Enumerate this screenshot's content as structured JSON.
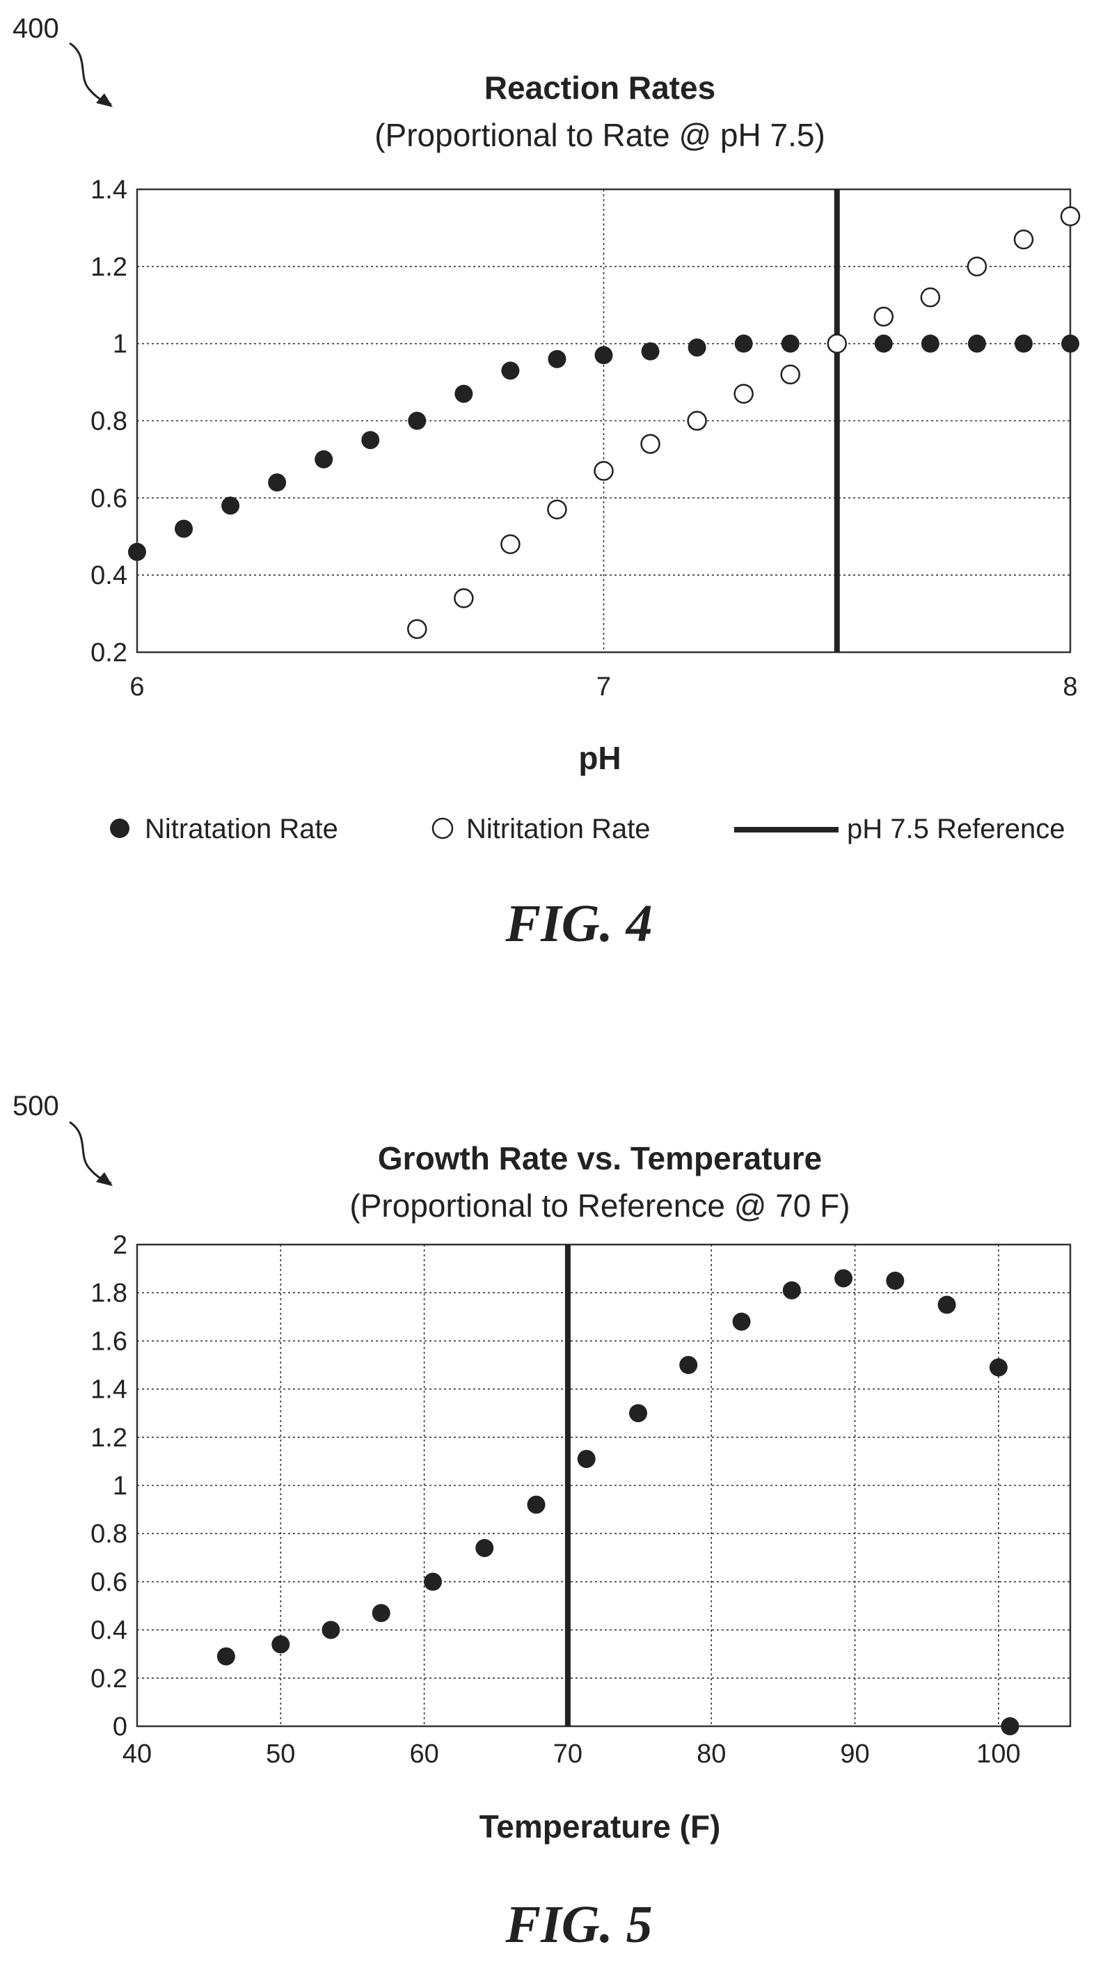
{
  "chart_data": [
    {
      "ref_number": "400",
      "figure_label": "FIG. 4",
      "type": "scatter",
      "title": "Reaction Rates",
      "subtitle": "(Proportional to Rate @ pH 7.5)",
      "xlabel": "pH",
      "ylabel": "",
      "xlim": [
        6,
        8
      ],
      "ylim": [
        0.2,
        1.4
      ],
      "x_ticks": [
        "6",
        "7",
        "8"
      ],
      "y_ticks": [
        "0.2",
        "0.4",
        "0.6",
        "0.8",
        "1",
        "1.2",
        "1.4"
      ],
      "grid": true,
      "legend_position": "bottom",
      "series": [
        {
          "name": "Nitratation Rate",
          "marker": "filled-circle",
          "x": [
            6.0,
            6.1,
            6.2,
            6.3,
            6.4,
            6.5,
            6.6,
            6.7,
            6.8,
            6.9,
            7.0,
            7.1,
            7.2,
            7.3,
            7.4,
            7.5,
            7.6,
            7.7,
            7.8,
            7.9,
            8.0
          ],
          "y": [
            0.46,
            0.52,
            0.58,
            0.64,
            0.7,
            0.75,
            0.8,
            0.87,
            0.93,
            0.96,
            0.97,
            0.98,
            0.99,
            1.0,
            1.0,
            1.0,
            1.0,
            1.0,
            1.0,
            1.0,
            1.0
          ]
        },
        {
          "name": "Nitritation Rate",
          "marker": "open-circle",
          "x": [
            6.6,
            6.7,
            6.8,
            6.9,
            7.0,
            7.1,
            7.2,
            7.3,
            7.4,
            7.5,
            7.6,
            7.7,
            7.8,
            7.9,
            8.0
          ],
          "y": [
            0.26,
            0.34,
            0.48,
            0.57,
            0.67,
            0.74,
            0.8,
            0.87,
            0.92,
            1.0,
            1.07,
            1.12,
            1.2,
            1.27,
            1.33
          ]
        }
      ],
      "reference_line": {
        "name": "pH 7.5 Reference",
        "x": 7.5
      }
    },
    {
      "ref_number": "500",
      "figure_label": "FIG. 5",
      "type": "scatter",
      "title": "Growth Rate vs. Temperature",
      "subtitle": "(Proportional to Reference @ 70 F)",
      "xlabel": "Temperature (F)",
      "ylabel": "",
      "xlim": [
        40,
        105
      ],
      "ylim": [
        0,
        2
      ],
      "x_ticks": [
        "40",
        "50",
        "60",
        "70",
        "80",
        "90",
        "100"
      ],
      "y_ticks": [
        "0",
        "0.2",
        "0.4",
        "0.6",
        "0.8",
        "1",
        "1.2",
        "1.4",
        "1.6",
        "1.8",
        "2"
      ],
      "grid": true,
      "series": [
        {
          "marker": "filled-circle",
          "x": [
            46.2,
            50.0,
            53.5,
            57.0,
            60.6,
            64.2,
            67.8,
            71.3,
            74.9,
            78.4,
            82.1,
            85.6,
            89.2,
            92.8,
            96.4,
            100.0,
            100.8
          ],
          "y": [
            0.29,
            0.34,
            0.4,
            0.47,
            0.6,
            0.74,
            0.92,
            1.11,
            1.3,
            1.5,
            1.68,
            1.81,
            1.86,
            1.85,
            1.75,
            1.49,
            0.0
          ]
        }
      ],
      "reference_line": {
        "x": 70
      }
    }
  ]
}
